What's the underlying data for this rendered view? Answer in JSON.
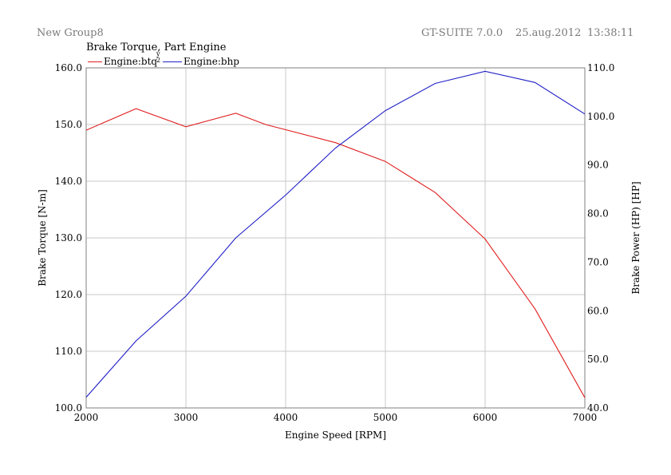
{
  "header": {
    "group": "New Group8",
    "software": "GT-SUITE 7.0.0",
    "date": "25.aug.2012",
    "time": "13:38:11"
  },
  "legend": {
    "separator": "y\n2"
  },
  "colors": {
    "torque": "#e02020",
    "power": "#2020c8",
    "grid": "#c8c8c8",
    "frame": "#808080"
  },
  "chart_data": {
    "type": "line",
    "title": "Brake Torque, Part Engine",
    "xlabel": "Engine Speed [RPM]",
    "ylabel": "Brake Torque [N-m]",
    "y2label": "Brake Power (HP) [HP]",
    "xlim": [
      2000,
      7000
    ],
    "ylim": [
      100,
      160
    ],
    "y2lim": [
      40,
      110
    ],
    "x_ticks": [
      "2000",
      "3000",
      "4000",
      "5000",
      "6000",
      "7000"
    ],
    "y_ticks": [
      "100.0",
      "110.0",
      "120.0",
      "130.0",
      "140.0",
      "150.0",
      "160.0"
    ],
    "y2_ticks": [
      "40.0",
      "50.0",
      "60.0",
      "70.0",
      "80.0",
      "90.0",
      "100.0",
      "110.0"
    ],
    "grid": true,
    "series": [
      {
        "name": "Engine:btq",
        "axis": "left",
        "x": [
          2000,
          2500,
          3000,
          3500,
          3800,
          4500,
          5000,
          5500,
          6000,
          6500,
          7000
        ],
        "y": [
          149.0,
          152.8,
          149.6,
          152.0,
          150.0,
          146.8,
          143.5,
          138.0,
          129.8,
          117.5,
          101.8
        ]
      },
      {
        "name": "Engine:bhp",
        "axis": "right",
        "x": [
          2000,
          2500,
          3000,
          3500,
          4000,
          4500,
          5000,
          5500,
          6000,
          6500,
          7000
        ],
        "y": [
          42.2,
          53.8,
          63.0,
          75.0,
          83.8,
          93.5,
          101.2,
          106.8,
          109.3,
          107.0,
          100.5
        ]
      }
    ]
  }
}
